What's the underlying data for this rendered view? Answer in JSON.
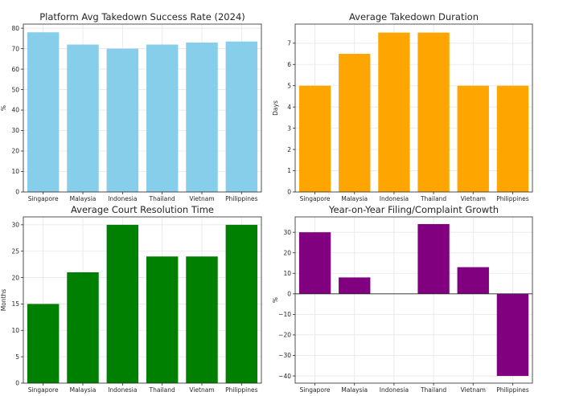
{
  "chart_data": [
    {
      "type": "bar",
      "title": "Platform Avg Takedown Success Rate (2024)",
      "xlabel": "",
      "ylabel": "%",
      "categories": [
        "Singapore",
        "Malaysia",
        "Indonesia",
        "Thailand",
        "Vietnam",
        "Philippines"
      ],
      "values": [
        78,
        72,
        70,
        72,
        73,
        73.5
      ],
      "ylim": [
        0,
        82
      ],
      "yticks": [
        0,
        10,
        20,
        30,
        40,
        50,
        60,
        70,
        80
      ],
      "color": "#87CEEB",
      "grid": true
    },
    {
      "type": "bar",
      "title": "Average Takedown Duration",
      "xlabel": "",
      "ylabel": "Days",
      "categories": [
        "Singapore",
        "Malaysia",
        "Indonesia",
        "Thailand",
        "Vietnam",
        "Philippines"
      ],
      "values": [
        5,
        6.5,
        7.5,
        7.5,
        5,
        5
      ],
      "ylim": [
        0,
        7.9
      ],
      "yticks": [
        0,
        1,
        2,
        3,
        4,
        5,
        6,
        7
      ],
      "color": "#FFA500",
      "grid": true
    },
    {
      "type": "bar",
      "title": "Average Court Resolution Time",
      "xlabel": "",
      "ylabel": "Months",
      "categories": [
        "Singapore",
        "Malaysia",
        "Indonesia",
        "Thailand",
        "Vietnam",
        "Philippines"
      ],
      "values": [
        15,
        21,
        30,
        24,
        24,
        30
      ],
      "ylim": [
        0,
        31.5
      ],
      "yticks": [
        0,
        5,
        10,
        15,
        20,
        25,
        30
      ],
      "color": "#008000",
      "grid": true
    },
    {
      "type": "bar",
      "title": "Year-on-Year Filing/Complaint Growth",
      "xlabel": "",
      "ylabel": "%",
      "categories": [
        "Singapore",
        "Malaysia",
        "Indonesia",
        "Thailand",
        "Vietnam",
        "Philippines"
      ],
      "values": [
        30,
        8,
        0,
        34,
        13,
        -40
      ],
      "ylim": [
        -43.5,
        37.5
      ],
      "yticks": [
        -40,
        -30,
        -20,
        -10,
        0,
        10,
        20,
        30
      ],
      "color": "#800080",
      "grid": true
    }
  ]
}
